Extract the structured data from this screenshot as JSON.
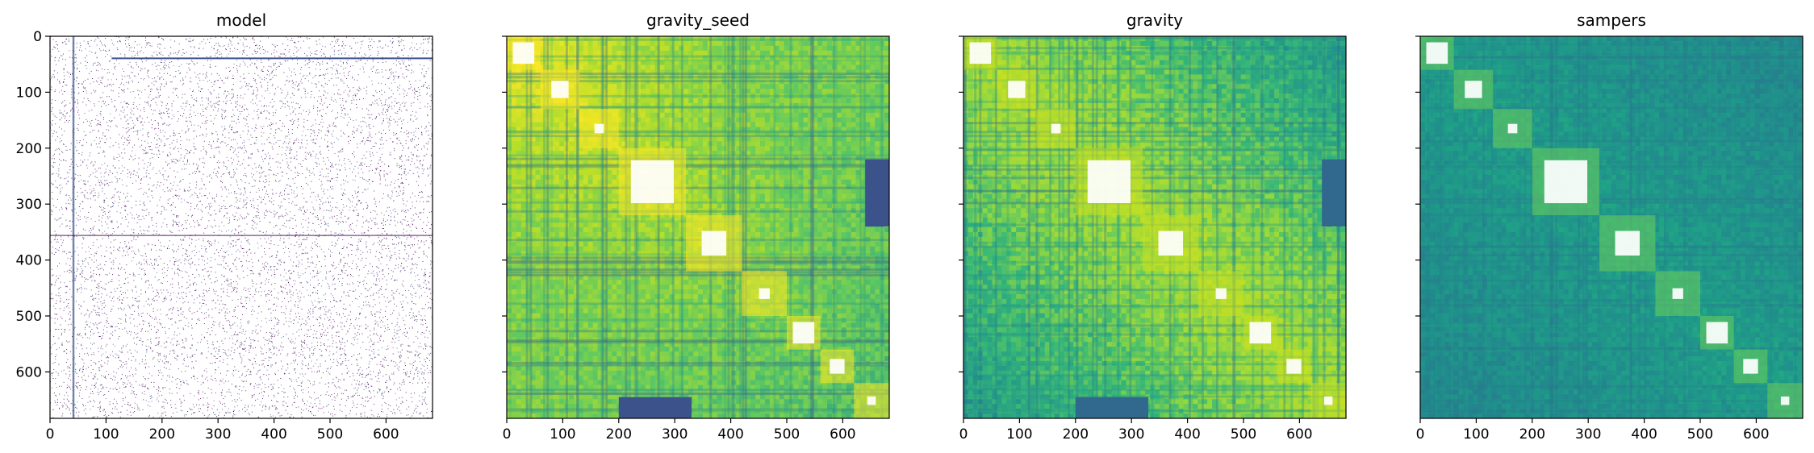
{
  "chart_data": [
    {
      "type": "heatmap",
      "title": "model",
      "xlim": [
        0,
        683
      ],
      "ylim": [
        683,
        0
      ],
      "xticks": [
        0,
        100,
        200,
        300,
        400,
        500,
        600
      ],
      "yticks": [
        0,
        100,
        200,
        300,
        400,
        500,
        600
      ],
      "show_ytick_labels": true,
      "colormap": "viridis-sparse",
      "background": "#ffffff",
      "cmap_colors": [
        "#440154",
        "#3b528b",
        "#ffffff"
      ]
    },
    {
      "type": "heatmap",
      "title": "gravity_seed",
      "xlim": [
        0,
        683
      ],
      "ylim": [
        683,
        0
      ],
      "xticks": [
        0,
        100,
        200,
        300,
        400,
        500,
        600
      ],
      "yticks": [
        0,
        100,
        200,
        300,
        400,
        500,
        600
      ],
      "show_ytick_labels": false,
      "colormap": "viridis",
      "cmap_colors": [
        "#3b528b",
        "#21918c",
        "#5ec962",
        "#b5de2b",
        "#fde725"
      ]
    },
    {
      "type": "heatmap",
      "title": "gravity",
      "xlim": [
        0,
        683
      ],
      "ylim": [
        683,
        0
      ],
      "xticks": [
        0,
        100,
        200,
        300,
        400,
        500,
        600
      ],
      "yticks": [
        0,
        100,
        200,
        300,
        400,
        500,
        600
      ],
      "show_ytick_labels": false,
      "colormap": "viridis",
      "cmap_colors": [
        "#31688e",
        "#21918c",
        "#35b779",
        "#90d743",
        "#c8e020"
      ]
    },
    {
      "type": "heatmap",
      "title": "sampers",
      "xlim": [
        0,
        683
      ],
      "ylim": [
        683,
        0
      ],
      "xticks": [
        0,
        100,
        200,
        300,
        400,
        500,
        600
      ],
      "yticks": [
        0,
        100,
        200,
        300,
        400,
        500,
        600
      ],
      "show_ytick_labels": false,
      "colormap": "viridis",
      "cmap_colors": [
        "#2c728e",
        "#218a8d",
        "#1fa187",
        "#3bbb75",
        "#6ccd5a"
      ]
    }
  ]
}
